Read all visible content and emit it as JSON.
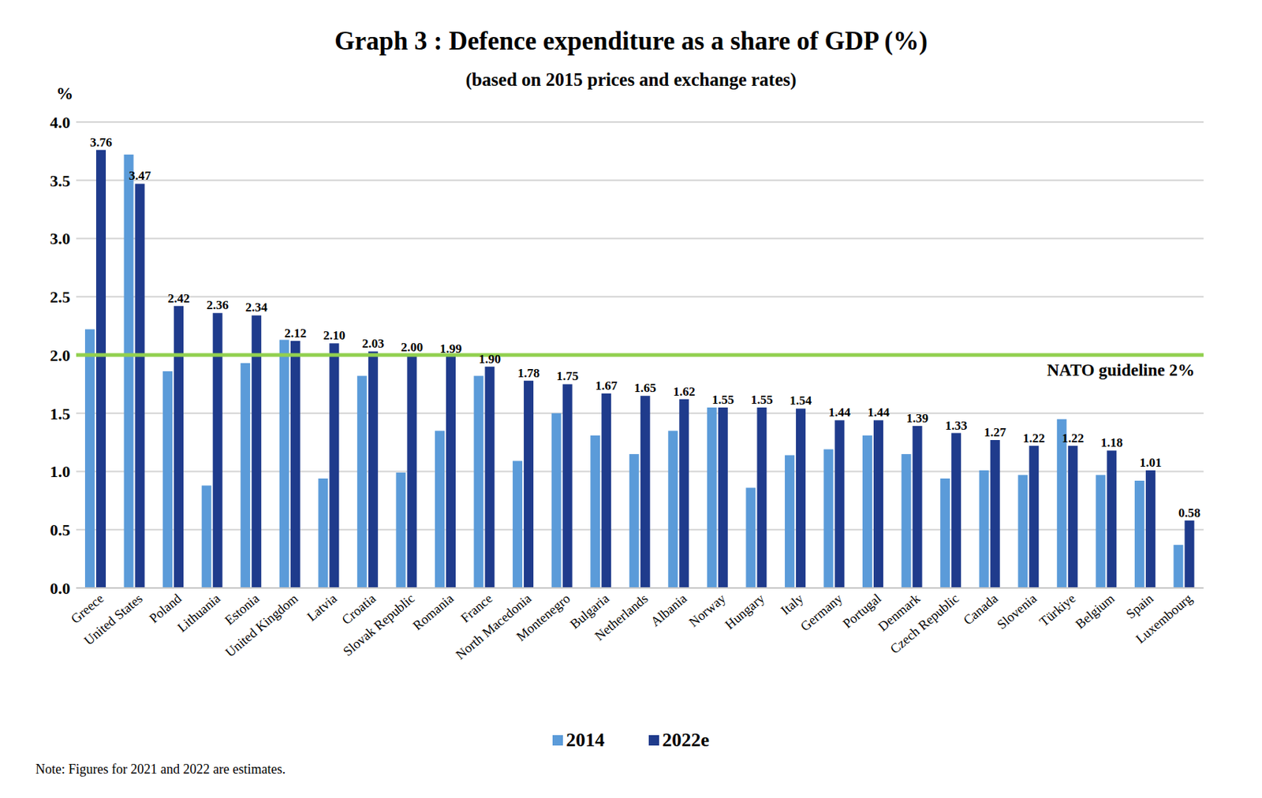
{
  "chart_data": {
    "type": "bar",
    "title": "Graph 3 : Defence expenditure as a share of GDP (%)",
    "subtitle": "(based on 2015 prices and exchange rates)",
    "y_label": "%",
    "note": "Note: Figures for 2021 and 2022 are estimates.",
    "categories": [
      "Greece",
      "United States",
      "Poland",
      "Lithuania",
      "Estonia",
      "United Kingdom",
      "Latvia",
      "Croatia",
      "Slovak Republic",
      "Romania",
      "France",
      "North Macedonia",
      "Montenegro",
      "Bulgaria",
      "Netherlands",
      "Albania",
      "Norway",
      "Hungary",
      "Italy",
      "Germany",
      "Portugal",
      "Denmark",
      "Czech Republic",
      "Canada",
      "Slovenia",
      "Türkiye",
      "Belgium",
      "Spain",
      "Luxembourg"
    ],
    "series": [
      {
        "name": "2014",
        "color": "#5b9bd9",
        "values": [
          2.22,
          3.72,
          1.86,
          0.88,
          1.93,
          2.13,
          0.94,
          1.82,
          0.99,
          1.35,
          1.82,
          1.09,
          1.5,
          1.31,
          1.15,
          1.35,
          1.55,
          0.86,
          1.14,
          1.19,
          1.31,
          1.15,
          0.94,
          1.01,
          0.97,
          1.45,
          0.97,
          0.92,
          0.37
        ]
      },
      {
        "name": "2022e",
        "color": "#1f3b8c",
        "values": [
          3.76,
          3.47,
          2.42,
          2.36,
          2.34,
          2.12,
          2.1,
          2.03,
          2.0,
          1.99,
          1.9,
          1.78,
          1.75,
          1.67,
          1.65,
          1.62,
          1.55,
          1.55,
          1.54,
          1.44,
          1.44,
          1.39,
          1.33,
          1.27,
          1.22,
          1.22,
          1.18,
          1.01,
          0.58
        ],
        "data_labels": true,
        "value_labels": [
          "3.76",
          "3.47",
          "2.42",
          "2.36",
          "2.34",
          "2.12",
          "2.10",
          "2.03",
          "2.00",
          "1.99",
          "1.90",
          "1.78",
          "1.75",
          "1.67",
          "1.65",
          "1.62",
          "1.55",
          "1.55",
          "1.54",
          "1.44",
          "1.44",
          "1.39",
          "1.33",
          "1.27",
          "1.22",
          "1.22",
          "1.18",
          "1.01",
          "0.58"
        ]
      }
    ],
    "ylim": [
      0,
      4
    ],
    "yticks": [
      {
        "value": 0,
        "label": "0.0"
      },
      0.5,
      {
        "value": 1,
        "label": "1.0"
      },
      1.5,
      {
        "value": 2,
        "label": "2.0"
      },
      2.5,
      {
        "value": 3,
        "label": "3.0"
      },
      3.5,
      {
        "value": 4,
        "label": "4.0"
      }
    ],
    "grid": true,
    "legend": "bottom",
    "annotations": [
      {
        "text": "NATO guideline 2%",
        "y": 2,
        "color": "#92d050"
      }
    ]
  }
}
